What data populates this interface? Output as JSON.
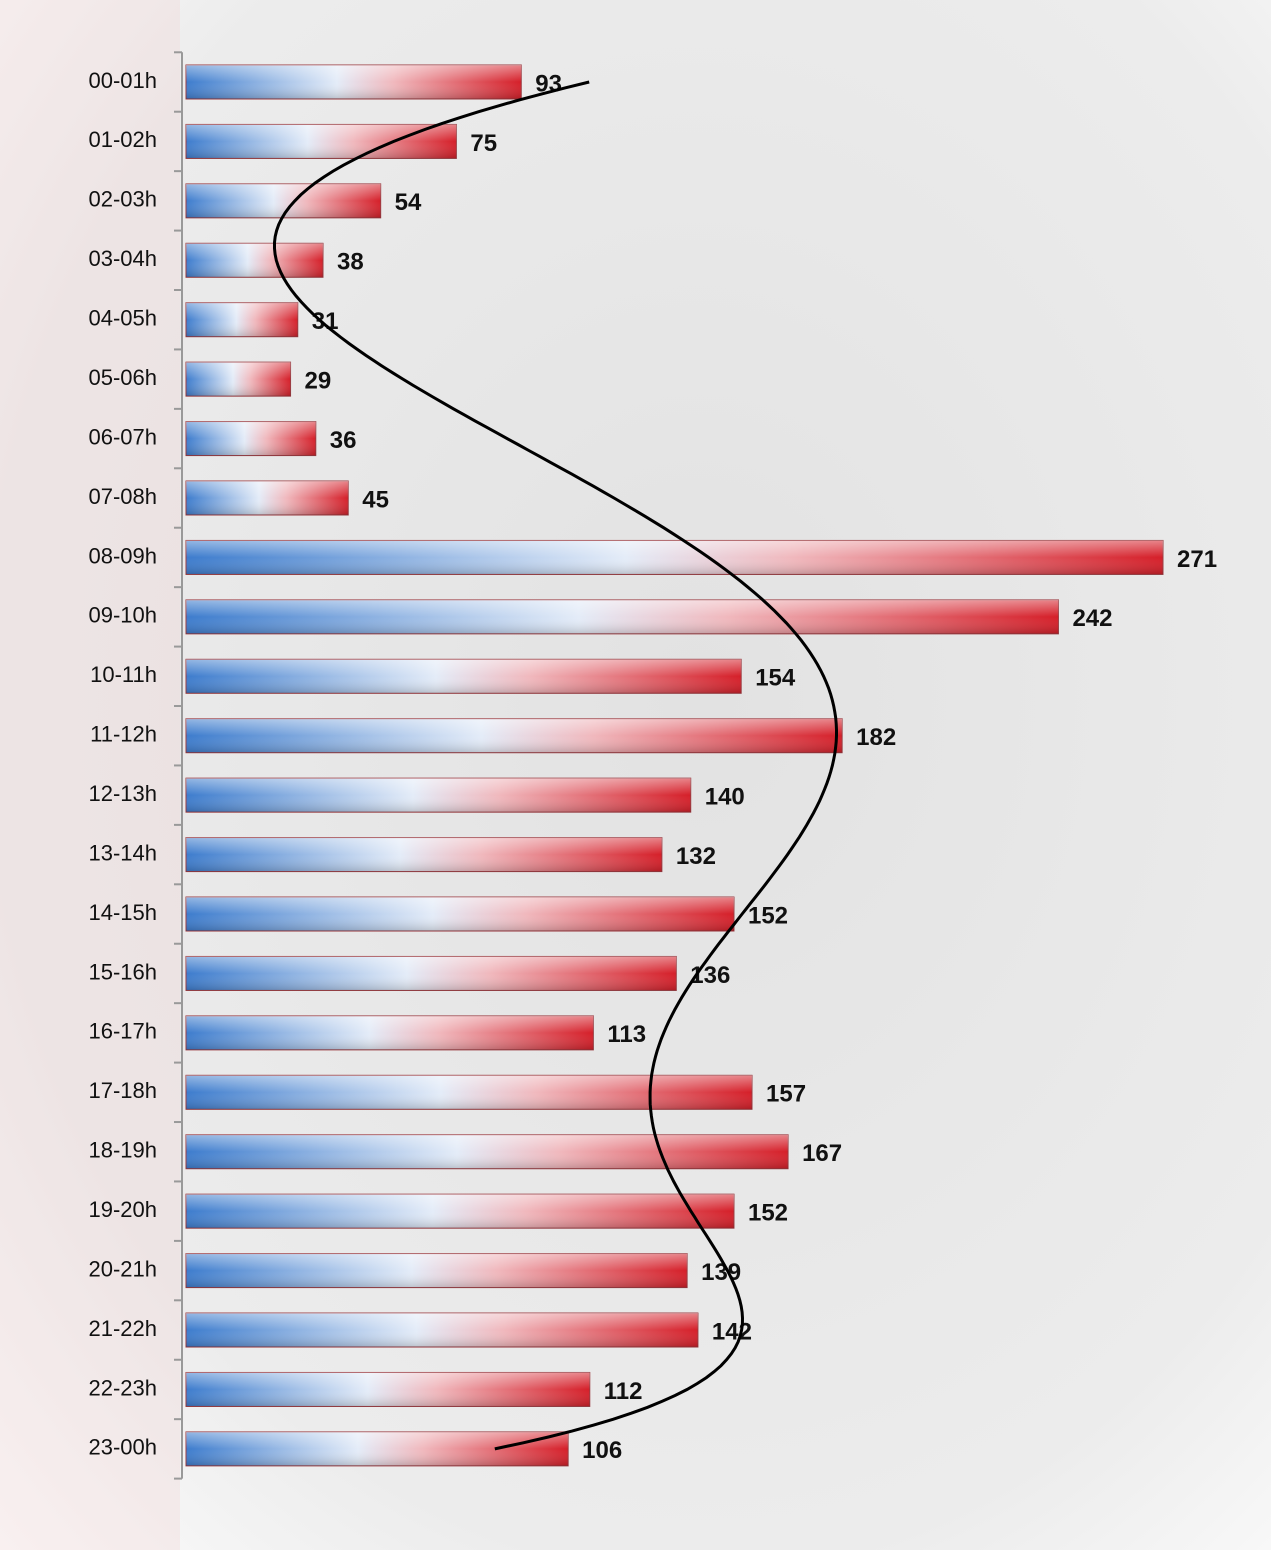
{
  "chart_data": {
    "type": "bar",
    "orientation": "horizontal",
    "categories": [
      "00-01h",
      "01-02h",
      "02-03h",
      "03-04h",
      "04-05h",
      "05-06h",
      "06-07h",
      "07-08h",
      "08-09h",
      "09-10h",
      "10-11h",
      "11-12h",
      "12-13h",
      "13-14h",
      "14-15h",
      "15-16h",
      "16-17h",
      "17-18h",
      "18-19h",
      "19-20h",
      "20-21h",
      "21-22h",
      "22-23h",
      "23-00h"
    ],
    "values": [
      93,
      75,
      54,
      38,
      31,
      29,
      36,
      45,
      271,
      242,
      154,
      182,
      140,
      132,
      152,
      136,
      113,
      157,
      167,
      152,
      139,
      142,
      112,
      106
    ],
    "colors": [
      "#3d7ccd",
      "#d51f29"
    ]
  }
}
